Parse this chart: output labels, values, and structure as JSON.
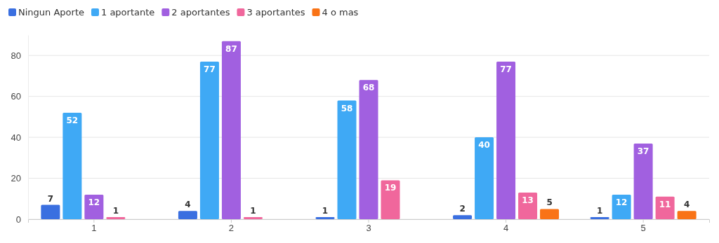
{
  "chart_data": {
    "type": "bar",
    "categories": [
      "1",
      "2",
      "3",
      "4",
      "5"
    ],
    "series": [
      {
        "name": "Ningun Aporte",
        "color": "#3a6fe0",
        "values": [
          7,
          4,
          1,
          2,
          1
        ]
      },
      {
        "name": "1 aportante",
        "color": "#3fa9f5",
        "values": [
          52,
          77,
          58,
          40,
          12
        ]
      },
      {
        "name": "2 aportantes",
        "color": "#a160e0",
        "values": [
          12,
          87,
          68,
          77,
          37
        ]
      },
      {
        "name": "3 aportantes",
        "color": "#f0679c",
        "values": [
          1,
          1,
          19,
          13,
          11
        ]
      },
      {
        "name": "4 o mas",
        "color": "#f97316",
        "values": [
          null,
          null,
          null,
          5,
          4
        ]
      }
    ],
    "ylim": [
      0,
      90
    ],
    "yticks": [
      0,
      20,
      40,
      60,
      80
    ],
    "grid": "y",
    "legend": "top left",
    "data_labels": true
  }
}
